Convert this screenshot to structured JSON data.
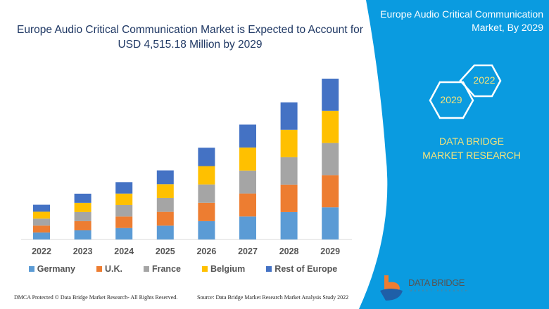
{
  "header": {
    "title": "Europe Audio Critical Communication Market is Expected to Account for USD 4,515.18 Million by 2029"
  },
  "panel": {
    "title": "Europe Audio Critical Communication Market, By 2029",
    "hex_a": "2022",
    "hex_b": "2029",
    "brand": "DATA BRIDGE MARKET RESEARCH",
    "logo_text": "DATA BRIDGE",
    "logo_sub": "MARKET RESEARCH",
    "color": "#0a9be0"
  },
  "footer": {
    "left": "DMCA Protected © Data Bridge Market Research- All Rights Reserved.",
    "right": "Source: Data Bridge Market Research Market Analysis Study 2022"
  },
  "chart_data": {
    "type": "bar",
    "stacked": true,
    "grid": false,
    "legend_position": "bottom",
    "categories": [
      "2022",
      "2023",
      "2024",
      "2025",
      "2026",
      "2027",
      "2028",
      "2029"
    ],
    "series": [
      {
        "name": "Germany",
        "color": "#5b9bd5",
        "values": [
          195,
          257,
          322,
          388,
          515,
          645,
          770,
          903
        ]
      },
      {
        "name": "U.K.",
        "color": "#ed7d31",
        "values": [
          195,
          257,
          322,
          388,
          515,
          645,
          770,
          903
        ]
      },
      {
        "name": "France",
        "color": "#a5a5a5",
        "values": [
          195,
          257,
          322,
          388,
          515,
          645,
          770,
          903
        ]
      },
      {
        "name": "Belgium",
        "color": "#ffc000",
        "values": [
          195,
          257,
          322,
          388,
          515,
          645,
          770,
          903
        ]
      },
      {
        "name": "Rest of Europe",
        "color": "#4472c4",
        "values": [
          195,
          257,
          322,
          388,
          515,
          645,
          770,
          903
        ]
      }
    ]
  }
}
